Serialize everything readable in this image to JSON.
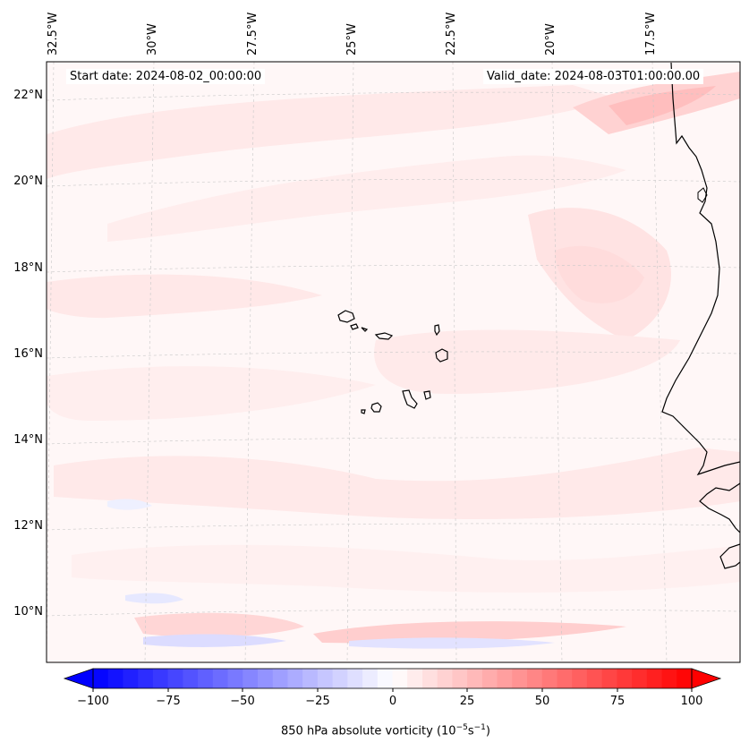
{
  "header": {
    "start_date": "Start date: 2024-08-02_00:00:00",
    "valid_date": "Valid_date: 2024-08-03T01:00:00.00"
  },
  "axes": {
    "lon_labels": [
      "32.5°W",
      "30°W",
      "27.5°W",
      "25°W",
      "22.5°W",
      "20°W",
      "17.5°W"
    ],
    "lat_labels": [
      "22°N",
      "20°N",
      "18°N",
      "16°N",
      "14°N",
      "12°N",
      "10°N"
    ]
  },
  "colorbar": {
    "tick_labels": [
      "−100",
      "−75",
      "−50",
      "−25",
      "0",
      "25",
      "50",
      "75",
      "100"
    ],
    "title_main": "850 hPa absolute vorticity (10",
    "title_exp1": "−5",
    "title_mid": "s",
    "title_exp2": "−1",
    "title_end": ")"
  },
  "colors": {
    "negative_end": "#0000ff",
    "positive_end": "#ff0000",
    "center": "#ffffff",
    "coastline": "#000000"
  }
}
